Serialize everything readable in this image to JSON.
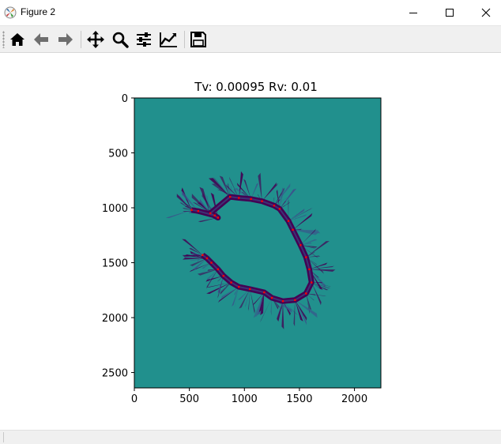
{
  "window": {
    "title": "Figure 2",
    "icon": "matplotlib-icon",
    "controls": [
      "minimize-icon",
      "maximize-icon",
      "close-icon"
    ]
  },
  "toolbar": {
    "tools": [
      "home-icon",
      "back-arrow-icon",
      "forward-arrow-icon",
      "pan-icon",
      "zoom-icon",
      "configure-subplots-icon",
      "edit-axis-icon",
      "save-icon"
    ]
  },
  "plot": {
    "title": "Tv: 0.00095 Rv: 0.01",
    "x_ticks": [
      "0",
      "500",
      "1000",
      "1500",
      "2000"
    ],
    "y_ticks": [
      "0",
      "500",
      "1000",
      "1500",
      "2000",
      "2500"
    ],
    "colors": {
      "background": "#21908d",
      "map": "#440154",
      "map_mid": "#3b528b",
      "markers": "#ff0000"
    }
  },
  "chart_data": {
    "type": "heatmap",
    "title": "Tv: 0.00095 Rv: 0.01",
    "xlim": [
      0,
      2240
    ],
    "ylim": [
      2640,
      0
    ],
    "colormap": "viridis",
    "grid": false,
    "markers": {
      "color": "#ff0000",
      "x": [
        520,
        580,
        730,
        760,
        690,
        870,
        950,
        1060,
        1160,
        1270,
        1320,
        1400,
        1440,
        1510,
        1560,
        1590,
        1610,
        1560,
        1460,
        1350,
        1250,
        1180,
        1050,
        950,
        880,
        810,
        760,
        700,
        660,
        620
      ],
      "y": [
        1020,
        1030,
        1070,
        1090,
        1050,
        900,
        910,
        920,
        940,
        980,
        1010,
        1120,
        1200,
        1340,
        1450,
        1560,
        1680,
        1780,
        1840,
        1850,
        1820,
        1770,
        1740,
        1720,
        1680,
        1620,
        1560,
        1500,
        1460,
        1430
      ]
    }
  }
}
